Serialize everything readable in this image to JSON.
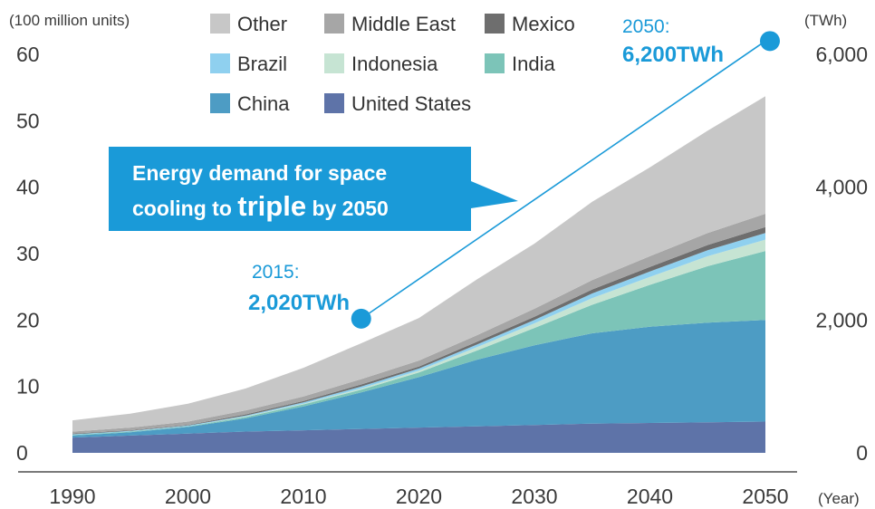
{
  "chart_data": {
    "type": "area",
    "stacked": true,
    "x": [
      1990,
      1995,
      2000,
      2005,
      2010,
      2015,
      2020,
      2025,
      2030,
      2035,
      2040,
      2045,
      2050
    ],
    "xlabel": "(Year)",
    "ylabel_left": "(100 million units)",
    "ylabel_right": "(TWh)",
    "ylim_left": [
      0,
      60
    ],
    "ylim_right": [
      0,
      6000
    ],
    "x_ticks": [
      "1990",
      "2000",
      "2010",
      "2020",
      "2030",
      "2040",
      "2050"
    ],
    "y_ticks_left": [
      "0",
      "10",
      "20",
      "30",
      "40",
      "50",
      "60"
    ],
    "y_ticks_right": [
      "0",
      "2,000",
      "4,000",
      "6,000"
    ],
    "series": [
      {
        "name": "United States",
        "color": "#5e73a8",
        "values": [
          2.3,
          2.6,
          2.9,
          3.2,
          3.4,
          3.6,
          3.8,
          4.0,
          4.2,
          4.4,
          4.5,
          4.6,
          4.7
        ]
      },
      {
        "name": "China",
        "color": "#4d9cc4",
        "values": [
          0.3,
          0.5,
          1.0,
          2.0,
          3.6,
          5.5,
          7.6,
          10.0,
          12.0,
          13.6,
          14.5,
          15.0,
          15.3
        ]
      },
      {
        "name": "India",
        "color": "#7cc4b8",
        "values": [
          0.1,
          0.1,
          0.1,
          0.2,
          0.3,
          0.4,
          0.7,
          1.4,
          2.6,
          4.3,
          6.3,
          8.5,
          10.4
        ]
      },
      {
        "name": "Indonesia",
        "color": "#c6e4d3",
        "values": [
          0.0,
          0.0,
          0.0,
          0.1,
          0.1,
          0.2,
          0.3,
          0.5,
          0.7,
          1.0,
          1.2,
          1.5,
          1.7
        ]
      },
      {
        "name": "Brazil",
        "color": "#8fd0ef",
        "values": [
          0.1,
          0.1,
          0.1,
          0.1,
          0.2,
          0.3,
          0.3,
          0.4,
          0.5,
          0.7,
          0.8,
          0.9,
          1.0
        ]
      },
      {
        "name": "Mexico",
        "color": "#6e6e6e",
        "values": [
          0.1,
          0.1,
          0.1,
          0.2,
          0.2,
          0.3,
          0.3,
          0.4,
          0.5,
          0.6,
          0.7,
          0.8,
          0.9
        ]
      },
      {
        "name": "Middle East",
        "color": "#a6a6a6",
        "values": [
          0.3,
          0.4,
          0.5,
          0.6,
          0.7,
          0.8,
          0.9,
          1.0,
          1.2,
          1.4,
          1.6,
          1.8,
          2.0
        ]
      },
      {
        "name": "Other",
        "color": "#c7c7c7",
        "values": [
          1.7,
          2.1,
          2.7,
          3.3,
          4.3,
          5.4,
          6.4,
          8.4,
          9.8,
          11.8,
          13.4,
          15.4,
          17.7
        ]
      }
    ],
    "legend_order": [
      "Other",
      "Middle East",
      "Mexico",
      "Brazil",
      "Indonesia",
      "India",
      "China",
      "United States"
    ],
    "legend_position": "top",
    "annotations": [
      {
        "year_label": "2015:",
        "value_label": "2,020TWh",
        "x": 2015,
        "twh": 2020
      },
      {
        "year_label": "2050:",
        "value_label": "6,200TWh",
        "x": 2050,
        "twh": 6200
      }
    ],
    "callout": {
      "line1": "Energy demand for space",
      "line2_pre": "cooling to ",
      "line2_em": "triple",
      "line2_post": " by 2050"
    },
    "accent_color": "#1a9ad8"
  }
}
